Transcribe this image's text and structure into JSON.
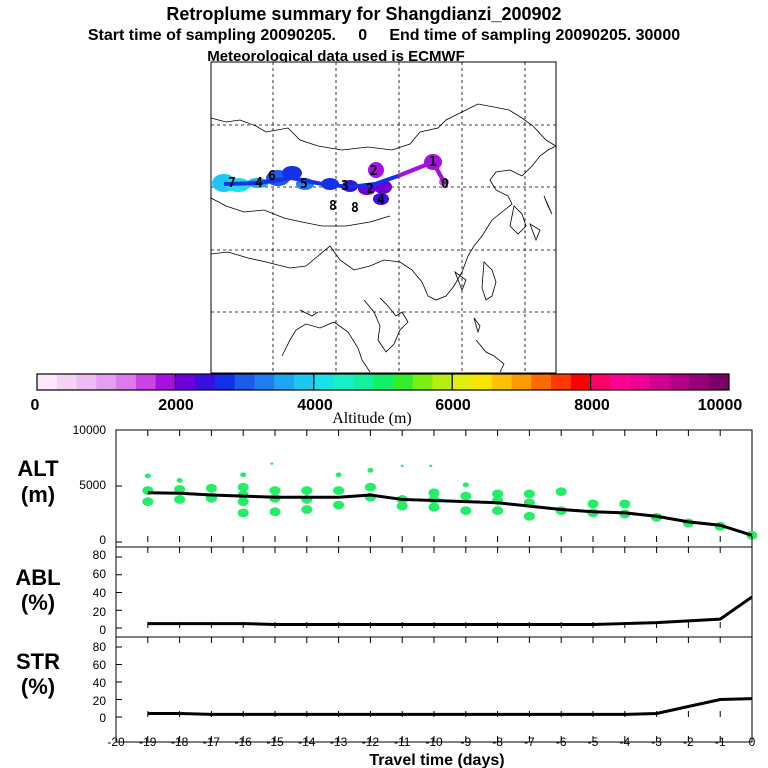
{
  "header": {
    "title": "Retroplume summary for Shangdianzi_200902",
    "subtitle": "Start time of sampling 20090205.     0     End time of sampling 20090205. 30000",
    "meteo": "Meteorological data used is ECMWF"
  },
  "colorbar": {
    "title": "Altitude (m)",
    "ticks": [
      "0",
      "2000",
      "4000",
      "6000",
      "8000",
      "10000"
    ],
    "colors": [
      "#fbe8fb",
      "#f3d2f3",
      "#eebbf3",
      "#e59ff0",
      "#dc7ceb",
      "#c845e6",
      "#a610e0",
      "#6c00d6",
      "#3a10e0",
      "#1430e8",
      "#1c5ae8",
      "#1f7ef0",
      "#1ea6f0",
      "#1cc8f0",
      "#1ce0e8",
      "#18f0c8",
      "#14f09c",
      "#14ee6a",
      "#34ee2c",
      "#7aee14",
      "#b6ee14",
      "#e2ee10",
      "#f8e600",
      "#ffc000",
      "#ff9a00",
      "#ff6a00",
      "#ff3a00",
      "#ff0000",
      "#ff0066",
      "#ff0090",
      "#ee0096",
      "#d20090",
      "#b40086",
      "#960078",
      "#780066"
    ]
  },
  "map_labels": [
    "0",
    "1",
    "2",
    "3",
    "4",
    "5",
    "6",
    "7",
    "8"
  ],
  "chart_data": [
    {
      "type": "line",
      "panel": "ALT",
      "ylabel_lines": [
        "ALT",
        "(m)"
      ],
      "ylim": [
        0,
        10000
      ],
      "yticks": [
        "10000",
        "5000",
        "0"
      ],
      "x": [
        -19,
        -18,
        -17,
        -16,
        -15,
        -14,
        -13,
        -12,
        -11,
        -10,
        -9,
        -8,
        -7,
        -6,
        -5,
        -4,
        -3,
        -2,
        -1,
        0
      ],
      "values": [
        4400,
        4350,
        4200,
        4100,
        4000,
        4000,
        4000,
        4200,
        3800,
        3700,
        3600,
        3500,
        3200,
        2900,
        2700,
        2600,
        2300,
        1800,
        1500,
        600
      ],
      "scatter": {
        "color": "#22ee66",
        "x": [
          -19,
          -19,
          -19,
          -18,
          -18,
          -18,
          -17,
          -17,
          -17,
          -16,
          -16,
          -16,
          -16,
          -15,
          -15,
          -15,
          -14,
          -14,
          -14,
          -13,
          -13,
          -13,
          -12,
          -12,
          -12,
          -11,
          -11,
          -10,
          -10,
          -10,
          -9,
          -9,
          -9,
          -8,
          -8,
          -8,
          -7,
          -7,
          -7,
          -6,
          -6,
          -5,
          -5,
          -4,
          -4,
          -3,
          -2,
          -1,
          0,
          -15.1,
          -11,
          -10.1,
          -16
        ],
        "y": [
          5900,
          4600,
          3600,
          5500,
          4700,
          3800,
          4800,
          4000,
          3900,
          4900,
          4200,
          3600,
          2600,
          4600,
          3900,
          2700,
          4600,
          3800,
          2900,
          6000,
          4600,
          3300,
          6400,
          4900,
          4000,
          3800,
          3200,
          4400,
          3800,
          3100,
          5100,
          4100,
          2800,
          4300,
          3700,
          2800,
          4300,
          3500,
          2300,
          4500,
          2800,
          3400,
          2600,
          3400,
          2500,
          2200,
          1700,
          1400,
          600,
          7000,
          6800,
          6800,
          6000
        ]
      }
    },
    {
      "type": "line",
      "panel": "ABL",
      "ylabel_lines": [
        "ABL",
        "(%)"
      ],
      "ylim": [
        0,
        90
      ],
      "yticks": [
        "80",
        "60",
        "40",
        "20",
        "0"
      ],
      "x": [
        -19,
        -18,
        -17,
        -16,
        -15,
        -14,
        -13,
        -12,
        -11,
        -10,
        -9,
        -8,
        -7,
        -6,
        -5,
        -4,
        -3,
        -2,
        -1,
        0
      ],
      "values": [
        5,
        5,
        5,
        5,
        4,
        4,
        4,
        4,
        4,
        4,
        4,
        4,
        4,
        4,
        4,
        5,
        6,
        8,
        10,
        35
      ]
    },
    {
      "type": "line",
      "panel": "STR",
      "ylabel_lines": [
        "STR",
        "(%)"
      ],
      "ylim": [
        0,
        90
      ],
      "yticks": [
        "80",
        "60",
        "40",
        "20",
        "0"
      ],
      "x": [
        -19,
        -18,
        -17,
        -16,
        -15,
        -14,
        -13,
        -12,
        -11,
        -10,
        -9,
        -8,
        -7,
        -6,
        -5,
        -4,
        -3,
        -2,
        -1,
        0
      ],
      "values": [
        4,
        4,
        3,
        3,
        3,
        3,
        3,
        3,
        3,
        3,
        3,
        3,
        3,
        3,
        3,
        3,
        4,
        12,
        20,
        21
      ]
    }
  ],
  "xaxis": {
    "label": "Travel time (days)",
    "ticks": [
      "-20",
      "-19",
      "-18",
      "-17",
      "-16",
      "-15",
      "-14",
      "-13",
      "-12",
      "-11",
      "-10",
      "-9",
      "-8",
      "-7",
      "-6",
      "-5",
      "-4",
      "-3",
      "-2",
      "-1",
      "0"
    ]
  }
}
